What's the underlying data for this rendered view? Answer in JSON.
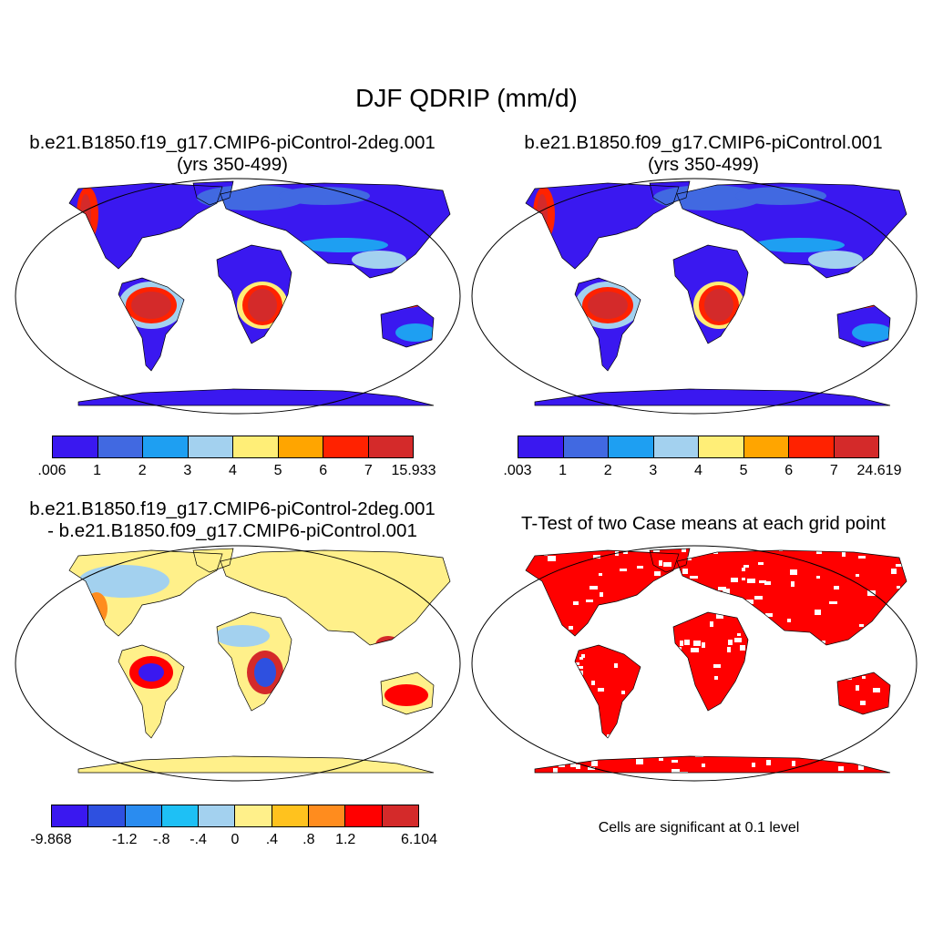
{
  "figure_title": "DJF QDRIP (mm/d)",
  "panels": [
    {
      "title_line1": "b.e21.B1850.f19_g17.CMIP6-piControl-2deg.001",
      "title_line2": "(yrs 350-499)"
    },
    {
      "title_line1": "b.e21.B1850.f09_g17.CMIP6-piControl.001",
      "title_line2": "(yrs 350-499)"
    },
    {
      "title_line1": "b.e21.B1850.f19_g17.CMIP6-piControl-2deg.001",
      "title_line2": "- b.e21.B1850.f09_g17.CMIP6-piControl.001"
    },
    {
      "title_line1": "T-Test of two Case means at each grid point",
      "title_line2": ""
    }
  ],
  "colorbars": [
    {
      "colors": [
        "#3a18f0",
        "#4169e1",
        "#1e9ff2",
        "#a3d1ef",
        "#ffee77",
        "#ffa500",
        "#ff2200",
        "#d42a2a"
      ],
      "labels": [
        ".006",
        "1",
        "2",
        "3",
        "4",
        "5",
        "6",
        "7",
        "15.933"
      ]
    },
    {
      "colors": [
        "#3a18f0",
        "#4169e1",
        "#1e9ff2",
        "#a3d1ef",
        "#ffee77",
        "#ffa500",
        "#ff2200",
        "#d42a2a"
      ],
      "labels": [
        ".003",
        "1",
        "2",
        "3",
        "4",
        "5",
        "6",
        "7",
        "24.619"
      ]
    },
    {
      "colors": [
        "#3a18f0",
        "#2e50e0",
        "#2a8cf0",
        "#1ec0f5",
        "#a3d1ef",
        "#fff08a",
        "#ffc21e",
        "#ff8c1e",
        "#ff0000",
        "#d42a2a"
      ],
      "labels": [
        "-9.868",
        "-1.2",
        "-.8",
        "-.4",
        "0",
        ".4",
        ".8",
        "1.2",
        "6.104"
      ],
      "label_slots": [
        0,
        2,
        3,
        4,
        5,
        6,
        7,
        8,
        10
      ]
    }
  ],
  "significance_note": "Cells are significant at 0.1 level",
  "significance_color": "#ff0000"
}
